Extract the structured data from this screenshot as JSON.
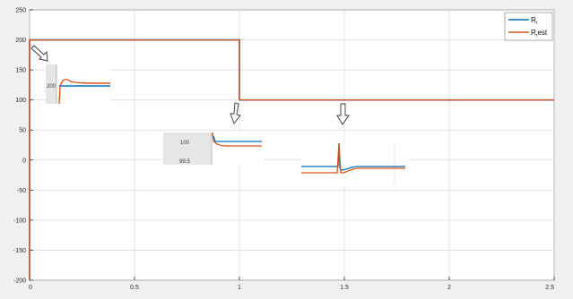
{
  "chart_data": {
    "type": "line",
    "title": "",
    "xlabel": "",
    "ylabel": "",
    "xlim": [
      0,
      2.5
    ],
    "ylim": [
      -200,
      250
    ],
    "xticks": [
      0,
      0.5,
      1,
      1.5,
      2,
      2.5
    ],
    "yticks": [
      -200,
      -150,
      -100,
      -50,
      0,
      50,
      100,
      150,
      200,
      250
    ],
    "grid": true,
    "legend_position": "top-right",
    "series": [
      {
        "name": "R",
        "name_subscript": "r",
        "color": "#0072bd",
        "x": [
          0,
          0,
          1,
          1,
          2.5
        ],
        "y": [
          -200,
          200,
          200,
          100,
          100
        ]
      },
      {
        "name": "R",
        "name_subscript": "r",
        "name_suffix": "est",
        "color": "#d95319",
        "x": [
          0,
          0,
          1,
          1,
          2.5
        ],
        "y": [
          -200,
          200,
          200,
          100,
          100
        ]
      }
    ],
    "insets": [
      {
        "label": "200"
      },
      {
        "label_top": "100",
        "label_bottom": "99.5"
      },
      {
        "label": ""
      }
    ]
  }
}
